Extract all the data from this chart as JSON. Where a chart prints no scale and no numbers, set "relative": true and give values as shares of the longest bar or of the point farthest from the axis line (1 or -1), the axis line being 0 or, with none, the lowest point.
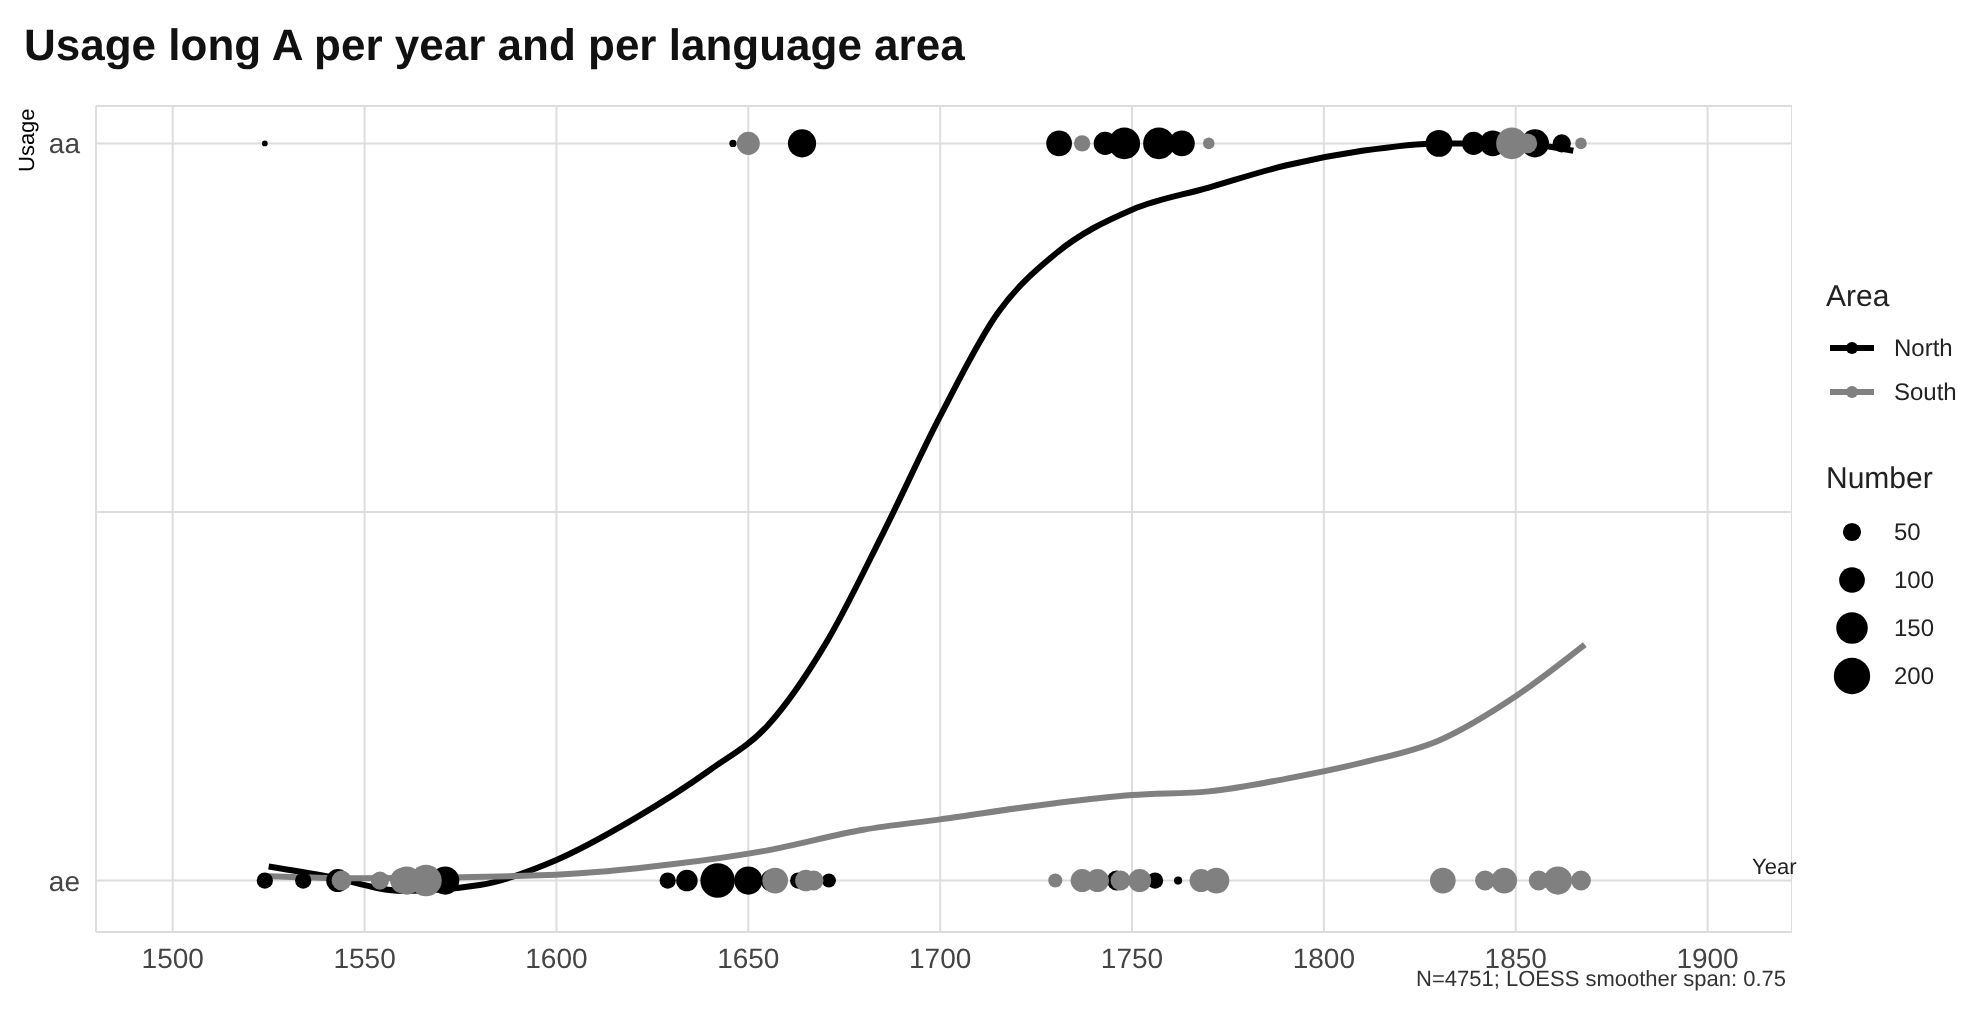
{
  "chart_data": {
    "type": "scatter",
    "title": "Usage long A per year and per language area",
    "xlabel": "Year",
    "ylabel": "Usage",
    "legend_title": [
      "Area",
      "Number"
    ],
    "annotations": [
      "N=4751; LOESS smoother span: 0.75"
    ],
    "xlim": [
      1480,
      1922
    ],
    "xticks": [
      1500,
      1550,
      1600,
      1650,
      1700,
      1750,
      1800,
      1850,
      1900
    ],
    "relative": true,
    "y_categories": [
      "aa",
      "ae"
    ],
    "grid": true,
    "legend": "right",
    "marker": "circle",
    "size_legend": [
      50,
      100,
      150,
      200
    ],
    "series": [
      {
        "name": "North",
        "color": "#000000",
        "x": [
          1524,
          1646,
          1664,
          1731,
          1743,
          1748,
          1757,
          1763,
          1830,
          1839,
          1844,
          1855,
          1862,
          1524,
          1534,
          1543,
          1571,
          1629,
          1634,
          1642,
          1650,
          1656,
          1663,
          1671,
          1746,
          1756,
          1762
        ],
        "values": [
          1,
          1,
          1,
          1,
          1,
          1,
          1,
          1,
          1,
          1,
          1,
          1,
          1,
          0,
          0,
          0,
          0,
          0,
          0,
          0,
          0,
          0,
          0,
          0,
          0,
          0,
          0
        ],
        "sizes": [
          5,
          8,
          120,
          100,
          80,
          150,
          150,
          100,
          110,
          80,
          100,
          120,
          50,
          40,
          40,
          80,
          120,
          40,
          70,
          180,
          120,
          70,
          40,
          30,
          60,
          40,
          10
        ]
      },
      {
        "name": "South",
        "color": "#808080",
        "x": [
          1650,
          1737,
          1770,
          1849,
          1853,
          1867,
          1544,
          1554,
          1560,
          1561,
          1566,
          1657,
          1665,
          1667,
          1730,
          1737,
          1741,
          1747,
          1752,
          1768,
          1772,
          1831,
          1842,
          1847,
          1856,
          1861,
          1867
        ],
        "values": [
          1,
          1,
          1,
          1,
          1,
          1,
          0,
          0,
          0,
          0,
          0,
          0,
          0,
          0,
          0,
          0,
          0,
          0,
          0,
          0,
          0,
          0,
          0,
          0,
          0,
          0,
          0
        ],
        "sizes": [
          80,
          40,
          20,
          150,
          60,
          20,
          60,
          50,
          100,
          120,
          150,
          100,
          70,
          60,
          30,
          80,
          80,
          60,
          80,
          80,
          100,
          100,
          60,
          100,
          60,
          120,
          60
        ]
      },
      {
        "type": "line",
        "marker": "none",
        "color": "#000000",
        "x": [
          1525,
          1540,
          1560,
          1580,
          1600,
          1620,
          1640,
          1655,
          1670,
          1685,
          1700,
          1715,
          1730,
          1750,
          1770,
          1790,
          1810,
          1830,
          1850,
          1865
        ],
        "values": [
          0.019,
          0.006,
          -0.014,
          -0.006,
          0.028,
          0.083,
          0.15,
          0.21,
          0.32,
          0.47,
          0.63,
          0.77,
          0.85,
          0.91,
          0.94,
          0.97,
          0.99,
          1.0,
          1.0,
          0.99
        ]
      },
      {
        "type": "line",
        "marker": "none",
        "color": "#808080",
        "x": [
          1525,
          1550,
          1600,
          1630,
          1655,
          1680,
          1700,
          1730,
          1750,
          1770,
          1790,
          1810,
          1830,
          1850,
          1868
        ],
        "values": [
          0.006,
          0.003,
          0.008,
          0.022,
          0.041,
          0.069,
          0.083,
          0.105,
          0.116,
          0.121,
          0.138,
          0.16,
          0.19,
          0.25,
          0.32
        ]
      }
    ]
  }
}
